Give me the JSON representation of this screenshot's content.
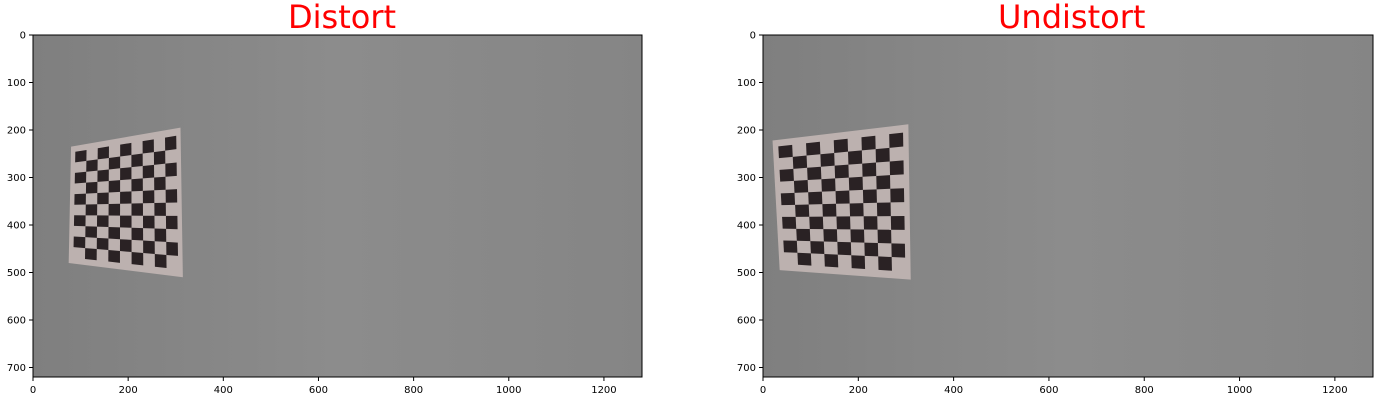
{
  "colors": {
    "title": "#ff0000",
    "wall": "#8a8a8a",
    "paper": "#c2b6b4",
    "square": "#2a2224",
    "axis": "#000000"
  },
  "chart_data": [
    {
      "type": "image",
      "title": "Distort",
      "xlim": [
        0,
        1280
      ],
      "ylim": [
        720,
        0
      ],
      "xticks": [
        0,
        200,
        400,
        600,
        800,
        1000,
        1200
      ],
      "yticks": [
        0,
        100,
        200,
        300,
        400,
        500,
        600,
        700
      ],
      "xticklabels": [
        "0",
        "200",
        "400",
        "600",
        "800",
        "1000",
        "1200"
      ],
      "yticklabels": [
        "0",
        "100",
        "200",
        "300",
        "400",
        "500",
        "600",
        "700"
      ],
      "checkerboard": {
        "corners": [
          [
            80,
            235
          ],
          [
            310,
            195
          ],
          [
            315,
            510
          ],
          [
            75,
            480
          ]
        ],
        "cols": 9,
        "rows": 10
      }
    },
    {
      "type": "image",
      "title": "Undistort",
      "xlim": [
        0,
        1280
      ],
      "ylim": [
        720,
        0
      ],
      "xticks": [
        0,
        200,
        400,
        600,
        800,
        1000,
        1200
      ],
      "yticks": [
        0,
        100,
        200,
        300,
        400,
        500,
        600,
        700
      ],
      "xticklabels": [
        "0",
        "200",
        "400",
        "600",
        "800",
        "1000",
        "1200"
      ],
      "yticklabels": [
        "0",
        "100",
        "200",
        "300",
        "400",
        "500",
        "600",
        "700"
      ],
      "checkerboard": {
        "corners": [
          [
            20,
            222
          ],
          [
            305,
            188
          ],
          [
            310,
            515
          ],
          [
            35,
            495
          ]
        ],
        "cols": 9,
        "rows": 10
      }
    }
  ]
}
